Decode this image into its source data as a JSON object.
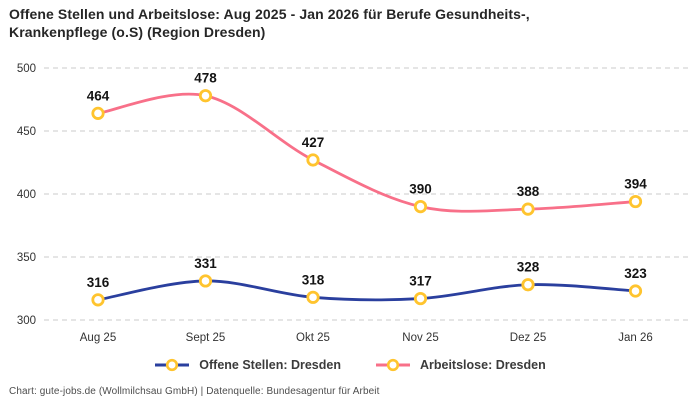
{
  "title": "Offene Stellen und Arbeitslose: Aug 2025 - Jan 2026 für Berufe Gesundheits-, Krankenpflege (o.S) (Region Dresden)",
  "footer": "Chart: gute-jobs.de (Wollmilchsau GmbH) | Datenquelle: Bundesagentur für Arbeit",
  "colors": {
    "series_open_positions": "#2A3F9E",
    "series_unemployed": "#F87089",
    "marker_ring": "#FFC42E",
    "marker_fill": "#FFFFFF",
    "gridline": "#cbcbcb",
    "tick_label": "#333333",
    "data_label": "#141414",
    "background": "#ffffff"
  },
  "chart_data": {
    "type": "line",
    "title": "Offene Stellen und Arbeitslose: Aug 2025 - Jan 2026 für Berufe Gesundheits-, Krankenpflege (o.S) (Region Dresden)",
    "categories": [
      "Aug 25",
      "Sept 25",
      "Okt 25",
      "Nov 25",
      "Dez 25",
      "Jan 26"
    ],
    "series": [
      {
        "name": "Offene Stellen: Dresden",
        "color": "#2A3F9E",
        "values": [
          316,
          331,
          318,
          317,
          328,
          323
        ]
      },
      {
        "name": "Arbeitslose: Dresden",
        "color": "#F87089",
        "values": [
          464,
          478,
          427,
          390,
          388,
          394
        ]
      }
    ],
    "xlabel": "",
    "ylabel": "",
    "ylim": [
      300,
      500
    ],
    "yticks": [
      300,
      350,
      400,
      450,
      500
    ],
    "grid": true,
    "grid_style": "dashed",
    "legend_position": "bottom",
    "marker": "open-circle",
    "marker_color": "#FFC42E",
    "data_labels_shown": true
  }
}
